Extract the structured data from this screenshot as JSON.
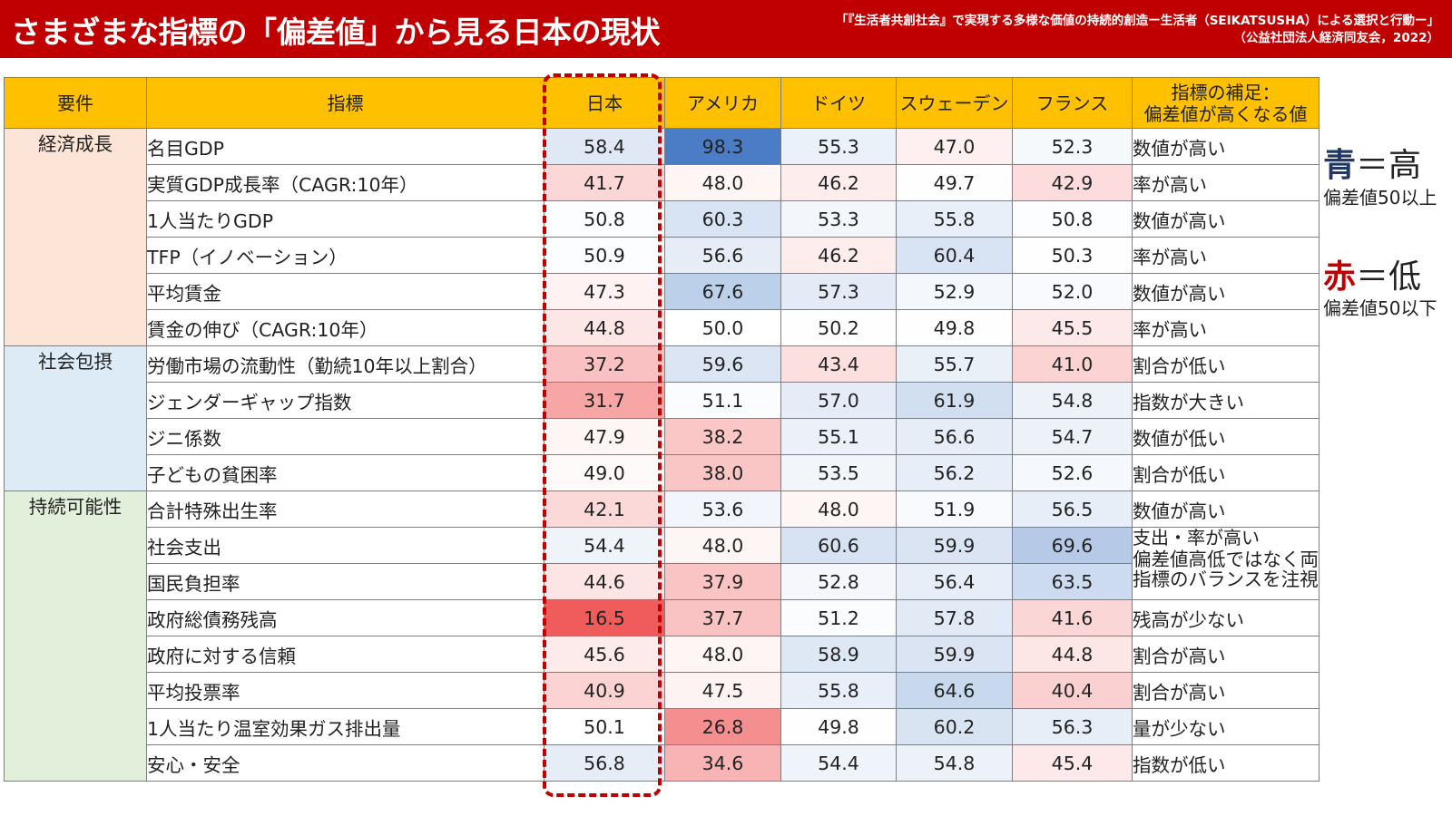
{
  "header": {
    "title": "さまざまな指標の「偏差値」から見る日本の現状",
    "source_line1": "「『生活者共創社会』で実現する多様な価値の持続的創造ー生活者（SEIKATSUSHA）による選択と行動ー」",
    "source_line2": "（公益社団法人経済同友会，2022）"
  },
  "table": {
    "headers": {
      "requirement": "要件",
      "indicator": "指標",
      "japan": "日本",
      "usa": "アメリカ",
      "germany": "ドイツ",
      "sweden": "スウェーデン",
      "france": "フランス",
      "note_line1": "指標の補足：",
      "note_line2": "偏差値が高くなる値"
    },
    "groups": [
      {
        "label": "経済成長",
        "color": "#fce4d6"
      },
      {
        "label": "社会包摂",
        "color": "#ddebf7"
      },
      {
        "label": "持続可能性",
        "color": "#e2efda"
      }
    ],
    "rows": [
      {
        "indicator": "名目GDP",
        "values": [
          "58.4",
          "98.3",
          "55.3",
          "47.0",
          "52.3"
        ],
        "note": "数値が高い"
      },
      {
        "indicator": "実質GDP成長率（CAGR:10年）",
        "values": [
          "41.7",
          "48.0",
          "46.2",
          "49.7",
          "42.9"
        ],
        "note": "率が高い"
      },
      {
        "indicator": "1人当たりGDP",
        "values": [
          "50.8",
          "60.3",
          "53.3",
          "55.8",
          "50.8"
        ],
        "note": "数値が高い"
      },
      {
        "indicator": "TFP（イノベーション）",
        "values": [
          "50.9",
          "56.6",
          "46.2",
          "60.4",
          "50.3"
        ],
        "note": "率が高い"
      },
      {
        "indicator": "平均賃金",
        "values": [
          "47.3",
          "67.6",
          "57.3",
          "52.9",
          "52.0"
        ],
        "note": "数値が高い"
      },
      {
        "indicator": "賃金の伸び（CAGR:10年）",
        "values": [
          "44.8",
          "50.0",
          "50.2",
          "49.8",
          "45.5"
        ],
        "note": "率が高い"
      },
      {
        "indicator": "労働市場の流動性（勤続10年以上割合）",
        "values": [
          "37.2",
          "59.6",
          "43.4",
          "55.7",
          "41.0"
        ],
        "note": "割合が低い"
      },
      {
        "indicator": "ジェンダーギャップ指数",
        "values": [
          "31.7",
          "51.1",
          "57.0",
          "61.9",
          "54.8"
        ],
        "note": "指数が大きい"
      },
      {
        "indicator": "ジニ係数",
        "values": [
          "47.9",
          "38.2",
          "55.1",
          "56.6",
          "54.7"
        ],
        "note": "数値が低い"
      },
      {
        "indicator": "子どもの貧困率",
        "values": [
          "49.0",
          "38.0",
          "53.5",
          "56.2",
          "52.6"
        ],
        "note": "割合が低い"
      },
      {
        "indicator": "合計特殊出生率",
        "values": [
          "42.1",
          "53.6",
          "48.0",
          "51.9",
          "56.5"
        ],
        "note": "数値が高い"
      },
      {
        "indicator": "社会支出",
        "values": [
          "54.4",
          "48.0",
          "60.6",
          "59.9",
          "69.6"
        ],
        "note": ""
      },
      {
        "indicator": "国民負担率",
        "values": [
          "44.6",
          "37.9",
          "52.8",
          "56.4",
          "63.5"
        ],
        "note": ""
      },
      {
        "indicator": "政府総債務残高",
        "values": [
          "16.5",
          "37.7",
          "51.2",
          "57.8",
          "41.6"
        ],
        "note": "残高が少ない"
      },
      {
        "indicator": "政府に対する信頼",
        "values": [
          "45.6",
          "48.0",
          "58.9",
          "59.9",
          "44.8"
        ],
        "note": "割合が高い"
      },
      {
        "indicator": "平均投票率",
        "values": [
          "40.9",
          "47.5",
          "55.8",
          "64.6",
          "40.4"
        ],
        "note": "割合が高い"
      },
      {
        "indicator": "1人当たり温室効果ガス排出量",
        "values": [
          "50.1",
          "26.8",
          "49.8",
          "60.2",
          "56.3"
        ],
        "note": "量が少ない"
      },
      {
        "indicator": "安心・安全",
        "values": [
          "56.8",
          "34.6",
          "54.4",
          "54.8",
          "45.4"
        ],
        "note": "指数が低い"
      }
    ],
    "merged_note": {
      "line1": "支出・率が高い",
      "line2": "偏差値高低ではなく両",
      "line3": "指標のバランスを注視"
    }
  },
  "legend": {
    "blue_label": "青",
    "blue_suffix": "＝高",
    "blue_desc": "偏差値50以上",
    "red_label": "赤",
    "red_suffix": "＝低",
    "red_desc": "偏差値50以下"
  },
  "colors": {
    "banner": "#c00000",
    "header_bg": "#ffc000",
    "blue_text": "#1f3864",
    "red_text": "#c00000"
  }
}
